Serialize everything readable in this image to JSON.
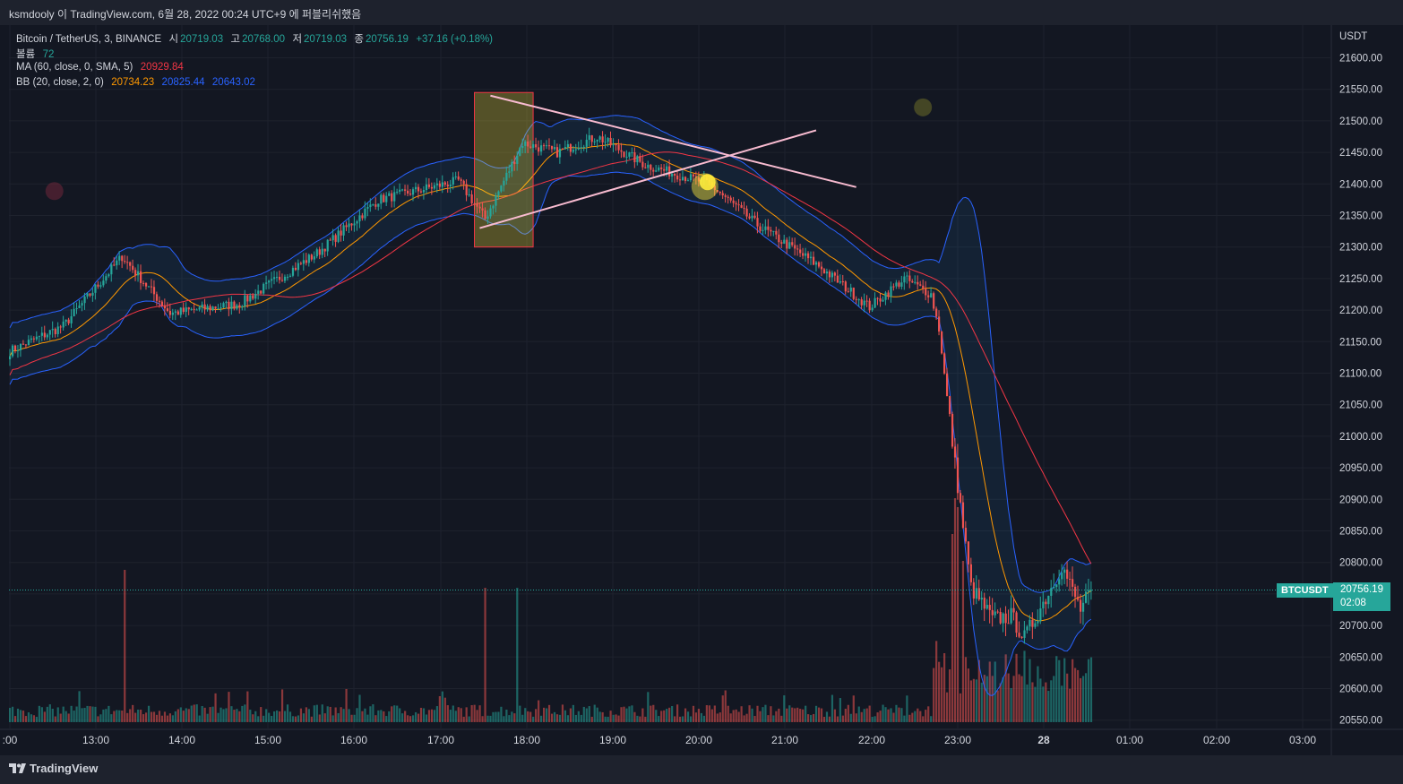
{
  "header": {
    "title": "ksmdooly 이 TradingView.com, 6월 28, 2022 00:24 UTC+9 에 퍼블리쉬했음"
  },
  "legend": {
    "symbol": "Bitcoin / TetherUS, 3, BINANCE",
    "open_label": "시",
    "open": "20719.03",
    "high_label": "고",
    "high": "20768.00",
    "low_label": "저",
    "low": "20719.03",
    "close_label": "종",
    "close": "20756.19",
    "change": "+37.16 (+0.18%)",
    "volume_label": "볼륨",
    "volume": "72",
    "ma_label": "MA (60, close, 0, SMA, 5)",
    "ma_value": "20929.84",
    "bb_label": "BB (20, close, 2, 0)",
    "bb_basis": "20734.23",
    "bb_upper": "20825.44",
    "bb_lower": "20643.02"
  },
  "price_tag": {
    "symbol": "BTCUSDT",
    "price": "20756.19",
    "countdown": "02:08"
  },
  "footer": {
    "brand": "TradingView"
  },
  "colors": {
    "background": "#131722",
    "up": "#26a69a",
    "down": "#ef5350",
    "ma": "#f23645",
    "bb_basis": "#ff9800",
    "bb_band": "#2962ff"
  },
  "chart_data": {
    "type": "candlestick",
    "title": "Bitcoin / TetherUS, 3, BINANCE",
    "currency": "USDT",
    "ylim": [
      20525,
      21635
    ],
    "y_ticks": [
      "21600.00",
      "21550.00",
      "21500.00",
      "21450.00",
      "21400.00",
      "21350.00",
      "21300.00",
      "21250.00",
      "21200.00",
      "21150.00",
      "21100.00",
      "21050.00",
      "21000.00",
      "20950.00",
      "20900.00",
      "20850.00",
      "20800.00",
      "20750.00",
      "20700.00",
      "20650.00",
      "20600.00",
      "20550.00"
    ],
    "x_ticks": [
      ":00",
      "13:00",
      "14:00",
      "15:00",
      "16:00",
      "17:00",
      "18:00",
      "19:00",
      "20:00",
      "21:00",
      "22:00",
      "23:00",
      "28",
      "01:00",
      "02:00",
      "03:00"
    ],
    "grid": true,
    "anchors": [
      {
        "t": 0,
        "p": 21135
      },
      {
        "t": 20,
        "p": 21175
      },
      {
        "t": 42,
        "p": 21285
      },
      {
        "t": 60,
        "p": 21195
      },
      {
        "t": 86,
        "p": 21210
      },
      {
        "t": 115,
        "p": 21290
      },
      {
        "t": 138,
        "p": 21375
      },
      {
        "t": 168,
        "p": 21405
      },
      {
        "t": 178,
        "p": 21345
      },
      {
        "t": 192,
        "p": 21465
      },
      {
        "t": 205,
        "p": 21450
      },
      {
        "t": 220,
        "p": 21475
      },
      {
        "t": 238,
        "p": 21430
      },
      {
        "t": 262,
        "p": 21400
      },
      {
        "t": 280,
        "p": 21335
      },
      {
        "t": 303,
        "p": 21270
      },
      {
        "t": 322,
        "p": 21205
      },
      {
        "t": 335,
        "p": 21250
      },
      {
        "t": 345,
        "p": 21225
      },
      {
        "t": 348,
        "p": 21170
      },
      {
        "t": 354,
        "p": 20955
      },
      {
        "t": 360,
        "p": 20760
      },
      {
        "t": 368,
        "p": 20710
      },
      {
        "t": 375,
        "p": 20715
      },
      {
        "t": 380,
        "p": 20680
      },
      {
        "t": 390,
        "p": 20760
      },
      {
        "t": 394,
        "p": 20795
      },
      {
        "t": 401,
        "p": 20725
      },
      {
        "t": 405,
        "p": 20756
      }
    ],
    "volume_spikes": [
      [
        43,
        170
      ],
      [
        178,
        150
      ],
      [
        190,
        150
      ],
      [
        353,
        210
      ],
      [
        354,
        250
      ],
      [
        355,
        240
      ],
      [
        357,
        180
      ]
    ],
    "last_close": 20756.19,
    "indicators": [
      {
        "name": "MA (60, close, 0, SMA, 5)",
        "value": 20929.84
      },
      {
        "name": "BB (20, close, 2, 0)",
        "basis": 20734.23,
        "upper": 20825.44,
        "lower": 20643.02
      }
    ],
    "annotations": [
      {
        "type": "rectangle",
        "t": [
          174,
          196
        ],
        "p": [
          21300,
          21545
        ]
      },
      {
        "type": "trendline",
        "from": [
          180,
          21540
        ],
        "to": [
          317,
          21395
        ]
      },
      {
        "type": "trendline",
        "from": [
          176,
          21330
        ],
        "to": [
          302,
          21485
        ]
      },
      {
        "type": "highlight",
        "t": 262,
        "p": 21400
      },
      {
        "type": "dot",
        "t": 13,
        "p": 21400
      },
      {
        "type": "dot",
        "t": 342,
        "p": 21520
      }
    ]
  }
}
